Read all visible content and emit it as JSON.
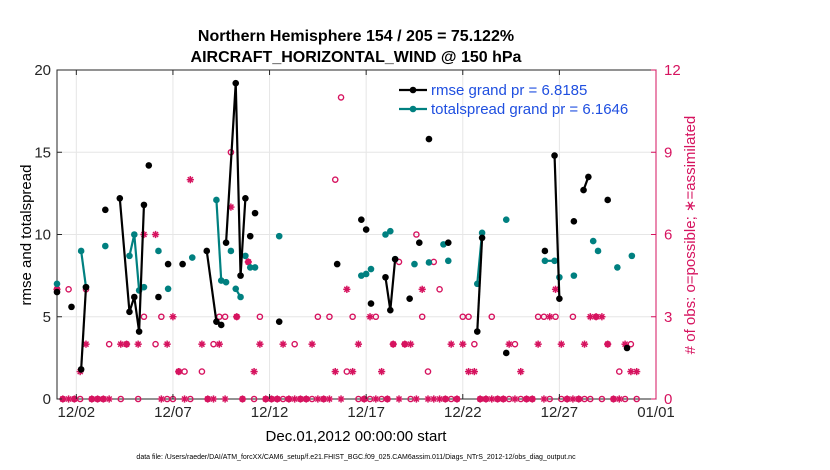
{
  "chart_data": {
    "type": "line",
    "title": "Northern Hemisphere 154 / 205 = 75.122%",
    "subtitle": "AIRCRAFT_HORIZONTAL_WIND @ 150 hPa",
    "xlabel": "Dec.01,2012 00:00:00 start",
    "ylabel": "rmse and totalspread",
    "y2label": "# of obs: o=possible; ∗=assimilated",
    "footnote": "data file: /Users/raeder/DAI/ATM_forcXX/CAM6_setup/f.e21.FHIST_BGC.f09_025.CAM6assim.011/Diags_NTrS_2012-12/obs_diag_output.nc",
    "xlim": [
      0,
      31
    ],
    "ylim": [
      0,
      20
    ],
    "y2lim": [
      0,
      12
    ],
    "x_ticks": [
      1,
      6,
      11,
      16,
      21,
      26,
      31
    ],
    "x_tick_labels": [
      "12/02",
      "12/07",
      "12/12",
      "12/17",
      "12/22",
      "12/27",
      "01/01"
    ],
    "y_ticks": [
      0,
      5,
      10,
      15,
      20
    ],
    "y_tick_labels": [
      "0",
      "5",
      "10",
      "15",
      "20"
    ],
    "y2_ticks": [
      0,
      3,
      6,
      9,
      12
    ],
    "y2_tick_labels": [
      "0",
      "3",
      "6",
      "9",
      "12"
    ],
    "legend": {
      "position": "top-right",
      "entries": [
        "rmse grand pr = 6.8185",
        "totalspread grand pr = 6.1646"
      ]
    },
    "colors": {
      "rmse": "#000000",
      "totalspread": "#008080",
      "obs": "#d6135f",
      "grid": "#e6e6e6"
    },
    "series": [
      {
        "name": "rmse",
        "x": [
          0,
          0.75,
          1.25,
          1.5,
          2.5,
          3.25,
          3.75,
          4,
          4.25,
          4.5,
          4.75,
          5.25,
          5.75,
          6.5,
          7.75,
          8.25,
          8.5,
          8.75,
          9.25,
          9.5,
          9.75,
          10,
          10.25,
          11.5,
          14.5,
          15.75,
          16,
          16.25,
          17,
          17.25,
          17.5,
          18.25,
          18.75,
          19.25,
          20.25,
          21.75,
          22,
          23.25,
          25.25,
          25.75,
          26,
          26.75,
          27.25,
          27.5,
          28.5,
          29.5
        ],
        "y": [
          6.5,
          5.6,
          1.8,
          6.8,
          11.5,
          12.2,
          5.3,
          6.2,
          4.1,
          11.8,
          14.2,
          6.2,
          8.2,
          8.2,
          9.0,
          4.7,
          4.5,
          9.5,
          19.2,
          7.5,
          12.2,
          9.9,
          11.3,
          4.7,
          8.2,
          10.9,
          10.3,
          5.8,
          7.4,
          5.4,
          8.5,
          6.1,
          9.5,
          15.8,
          9.5,
          4.1,
          9.8,
          2.8,
          9.0,
          14.8,
          6.1,
          10.8,
          12.7,
          13.5,
          12.1,
          3.1
        ],
        "segments": [
          [
            2,
            3
          ],
          [
            5,
            9
          ],
          [
            14,
            15
          ],
          [
            17,
            20
          ],
          [
            28,
            30
          ],
          [
            35,
            36
          ],
          [
            39,
            40
          ],
          [
            42,
            43
          ]
        ]
      },
      {
        "name": "totalspread",
        "x": [
          0,
          1.25,
          1.5,
          2.5,
          3.75,
          4,
          4.25,
          4.5,
          5.25,
          5.75,
          7,
          8.25,
          8.5,
          8.75,
          9,
          9.25,
          9.5,
          9.75,
          10,
          10.25,
          11.5,
          15.75,
          16,
          16.25,
          17,
          17.25,
          17.5,
          18.5,
          19.25,
          20,
          20.25,
          21.75,
          22,
          23.25,
          25.25,
          25.75,
          26,
          26.75,
          27.75,
          28,
          29,
          29.75
        ],
        "y": [
          7.0,
          9.0,
          6.8,
          9.3,
          8.7,
          10.0,
          6.6,
          6.8,
          9.0,
          6.7,
          8.6,
          12.1,
          7.2,
          7.1,
          9.0,
          6.7,
          6.2,
          8.7,
          8.0,
          8.0,
          9.9,
          7.5,
          7.6,
          7.9,
          10.0,
          10.2,
          8.5,
          8.2,
          8.3,
          9.4,
          8.4,
          7.0,
          10.1,
          10.9,
          8.4,
          8.4,
          7.4,
          7.5,
          9.6,
          9.0,
          8.0,
          8.7
        ],
        "segments": [
          [
            1,
            2
          ],
          [
            4,
            7
          ],
          [
            11,
            12
          ],
          [
            15,
            16
          ],
          [
            31,
            32
          ],
          [
            34,
            35
          ]
        ]
      },
      {
        "name": "obs possible",
        "marker": "o",
        "x": [
          0,
          0.3,
          0.6,
          0.9,
          1.2,
          1.5,
          1.8,
          2.1,
          2.4,
          2.7,
          3.3,
          3.6,
          4.2,
          4.5,
          5.1,
          5.4,
          5.7,
          6,
          6.3,
          6.6,
          6.9,
          7.5,
          7.8,
          8.1,
          8.4,
          8.7,
          9,
          9.3,
          9.6,
          9.9,
          10.2,
          10.5,
          10.8,
          11.1,
          11.4,
          11.7,
          12,
          12.3,
          12.6,
          12.9,
          13.2,
          13.5,
          13.8,
          14.1,
          14.4,
          14.7,
          15,
          15.3,
          15.6,
          15.9,
          16.2,
          16.5,
          16.8,
          17.1,
          17.4,
          17.7,
          18,
          18.3,
          18.6,
          18.9,
          19.2,
          19.5,
          19.8,
          20.1,
          20.4,
          20.7,
          21,
          21.3,
          21.6,
          21.9,
          22.2,
          22.5,
          22.8,
          23.1,
          23.4,
          23.7,
          24,
          24.3,
          24.6,
          24.9,
          25.2,
          25.5,
          25.8,
          26.1,
          26.4,
          26.7,
          27,
          27.3,
          27.6,
          27.9,
          28.2,
          28.5,
          28.8,
          29.1,
          29.4,
          29.7,
          30
        ],
        "y": [
          4,
          0,
          4,
          0,
          0,
          4,
          0,
          0,
          0,
          2,
          0,
          2,
          0,
          3,
          2,
          3,
          0,
          0,
          1,
          1,
          0,
          1,
          0,
          2,
          3,
          3,
          9,
          3,
          0,
          5,
          0,
          3,
          0,
          0,
          0,
          0,
          0,
          2,
          0,
          0,
          0,
          3,
          0,
          3,
          8,
          11,
          1,
          3,
          0,
          0,
          0,
          3,
          0,
          0,
          2,
          5,
          2,
          0,
          6,
          3,
          1,
          5,
          4,
          0,
          0,
          0,
          3,
          3,
          2,
          0,
          0,
          3,
          0,
          0,
          0,
          2,
          0,
          0,
          0,
          3,
          3,
          0,
          3,
          0,
          0,
          3,
          0,
          0,
          0,
          3,
          0,
          2,
          0,
          1,
          0,
          2,
          0
        ]
      },
      {
        "name": "obs assimilated",
        "marker": "*",
        "x": [
          0,
          0.3,
          0.6,
          0.9,
          1.2,
          1.5,
          1.8,
          2.1,
          2.4,
          2.7,
          3.3,
          3.6,
          4.2,
          4.5,
          5.1,
          5.4,
          5.7,
          6,
          6.3,
          6.6,
          6.9,
          7.5,
          7.8,
          8.1,
          8.4,
          8.7,
          9,
          9.3,
          9.6,
          9.9,
          10.2,
          10.5,
          10.8,
          11.1,
          11.4,
          11.7,
          12,
          12.3,
          12.6,
          12.9,
          13.2,
          13.5,
          13.8,
          14.1,
          14.4,
          14.7,
          15,
          15.3,
          15.6,
          15.9,
          16.2,
          16.5,
          16.8,
          17.1,
          17.4,
          17.7,
          18,
          18.3,
          18.6,
          18.9,
          19.2,
          19.5,
          19.8,
          20.1,
          20.4,
          20.7,
          21,
          21.3,
          21.6,
          21.9,
          22.2,
          22.5,
          22.8,
          23.1,
          23.4,
          23.7,
          24,
          24.3,
          24.6,
          24.9,
          25.2,
          25.5,
          25.8,
          26.1,
          26.4,
          26.7,
          27,
          27.3,
          27.6,
          27.9,
          28.2,
          28.5,
          28.8,
          29.1,
          29.4,
          29.7,
          30
        ],
        "y": [
          4,
          0,
          0,
          0,
          1,
          2,
          0,
          0,
          0,
          0,
          2,
          2,
          2,
          6,
          6,
          0,
          2,
          3,
          1,
          0,
          8,
          2,
          0,
          0,
          2,
          0,
          7,
          3,
          0,
          5,
          1,
          2,
          0,
          0,
          0,
          2,
          0,
          0,
          0,
          0,
          2,
          0,
          0,
          0,
          1,
          0,
          4,
          1,
          2,
          0,
          3,
          0,
          1,
          0,
          2,
          0,
          2,
          2,
          0,
          4,
          0,
          0,
          0,
          0,
          2,
          0,
          2,
          1,
          1,
          0,
          0,
          0,
          0,
          0,
          2,
          0,
          1,
          0,
          0,
          2,
          0,
          3,
          4,
          2,
          0,
          0,
          0,
          2,
          3,
          3,
          3,
          2,
          0,
          0,
          2,
          1,
          1
        ]
      }
    ]
  }
}
